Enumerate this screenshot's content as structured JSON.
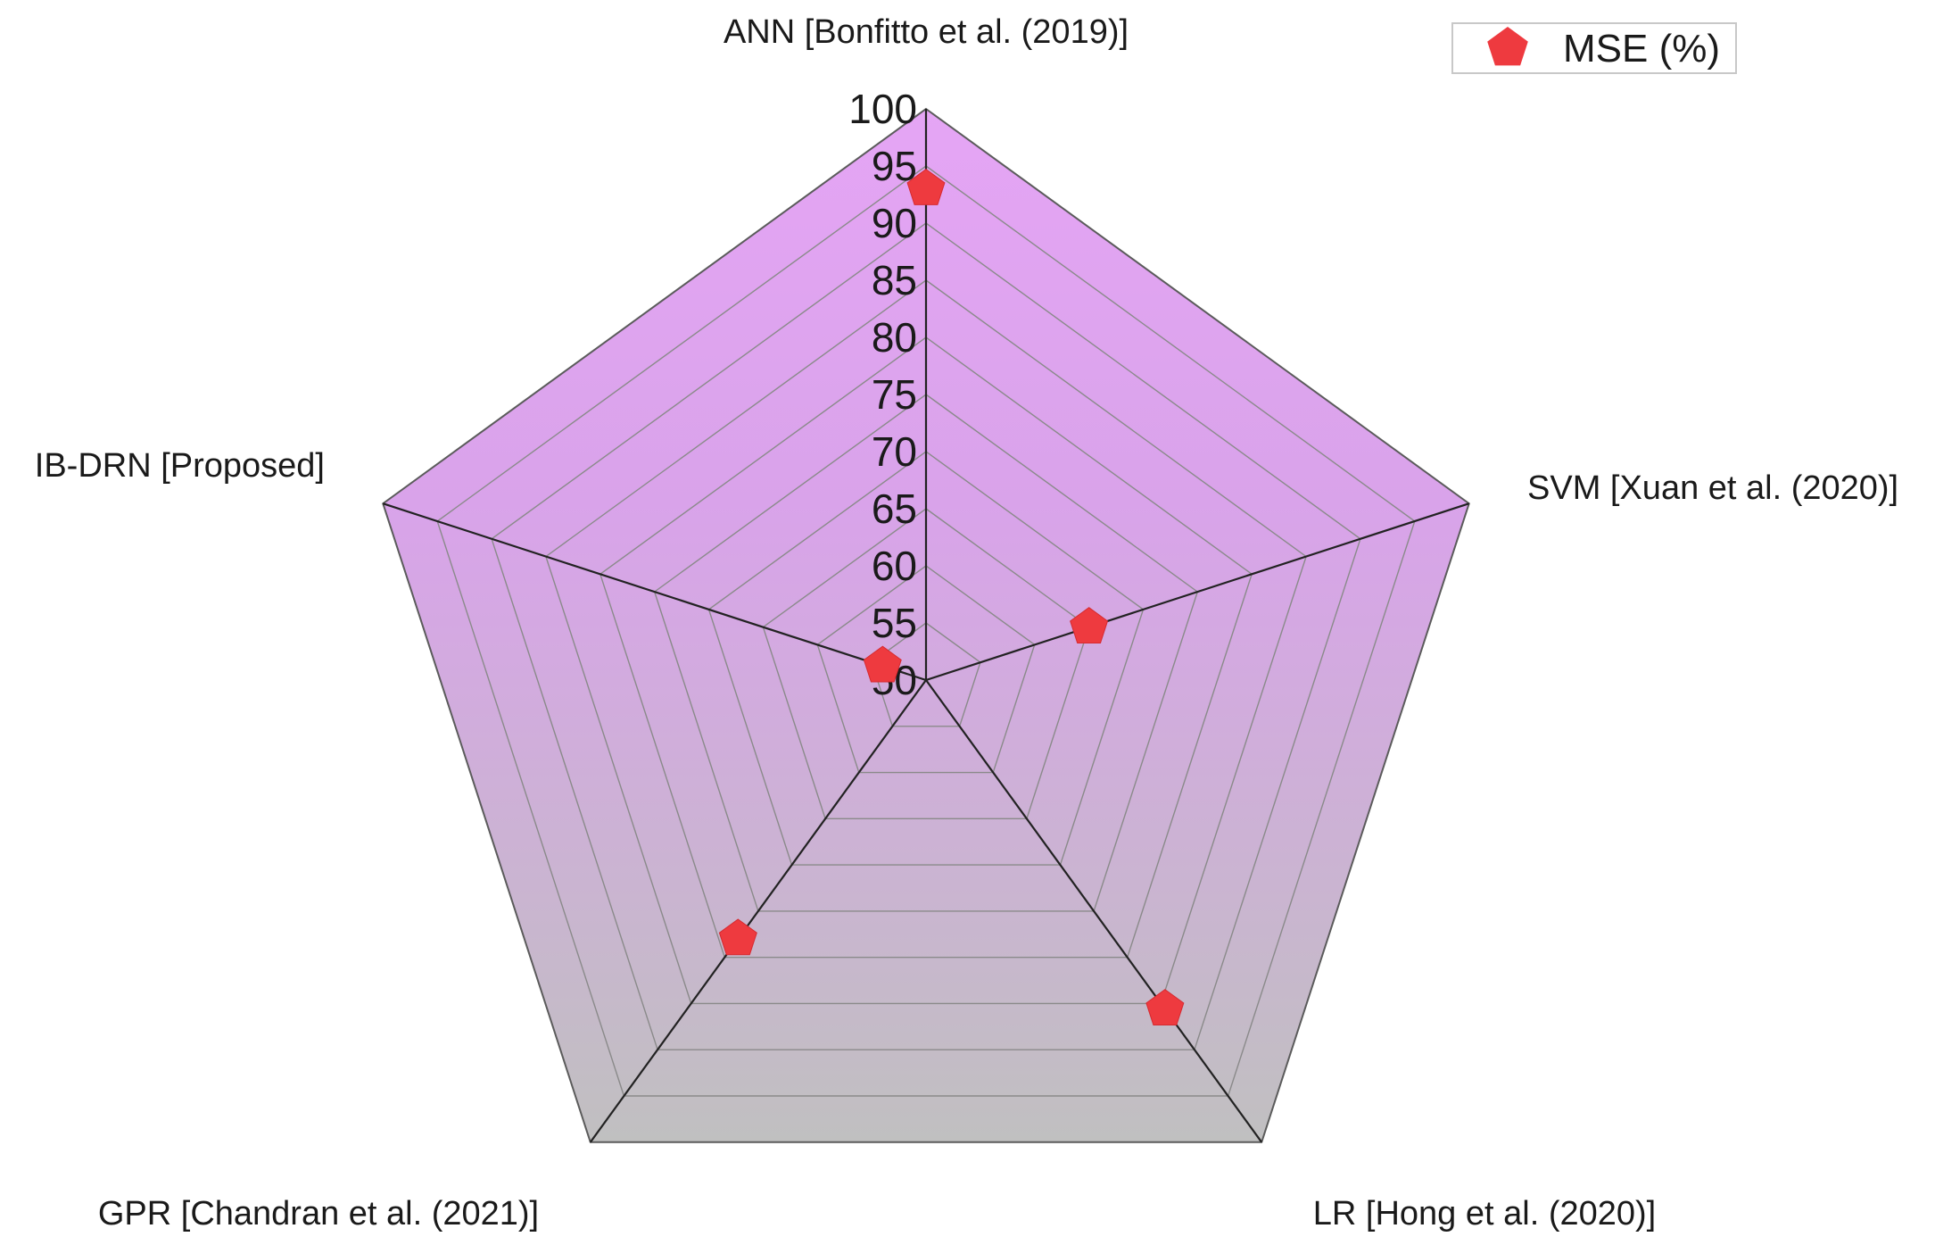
{
  "chart_data": {
    "type": "radar",
    "categories": [
      "ANN [Bonfitto et al. (2019)]",
      "SVM [Xuan et al. (2020)]",
      "LR [Hong et al. (2020)]",
      "GPR [Chandran et al. (2021)]",
      "IB-DRN [Proposed]"
    ],
    "series": [
      {
        "name": "MSE (%)",
        "values": [
          93,
          65,
          85.6,
          78,
          54
        ]
      }
    ],
    "rlim": [
      50,
      100
    ],
    "rticks": [
      50,
      55,
      60,
      65,
      70,
      75,
      80,
      85,
      90,
      95,
      100
    ],
    "tick_labels": [
      "50",
      "55",
      "60",
      "65",
      "70",
      "75",
      "80",
      "85",
      "90",
      "95",
      "100"
    ],
    "legend": {
      "label": "MSE (%)",
      "position": "top-right"
    },
    "grid": true,
    "colors": {
      "fill_top": "#e5a5f5",
      "fill_bottom": "#c0c0c0",
      "grid": "#8a8a8a",
      "axis": "#222222",
      "marker": "#ee3a3f"
    }
  }
}
